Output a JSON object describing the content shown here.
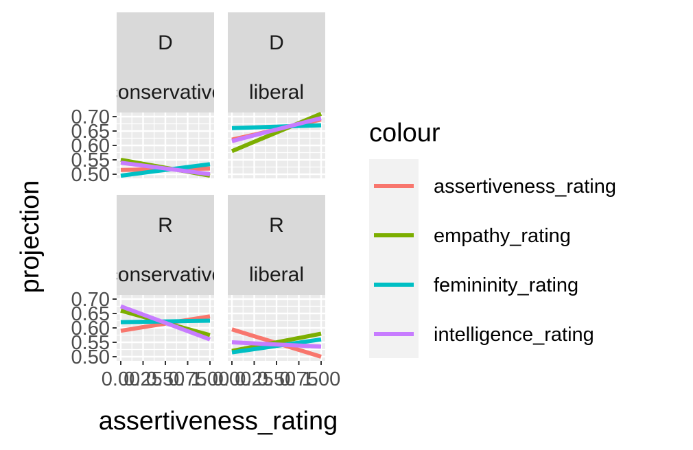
{
  "chart_data": {
    "type": "line",
    "facet_rows": [
      "D",
      "R"
    ],
    "facet_cols": [
      "conservative",
      "liberal"
    ],
    "xlabel": "assertiveness_rating",
    "ylabel": "projection",
    "xlim": [
      0,
      1
    ],
    "ylim": [
      0.5,
      0.7
    ],
    "x_ticks": [
      "0.00",
      "0.25",
      "0.50",
      "0.75",
      "1.00"
    ],
    "y_ticks": [
      "0.50",
      "0.55",
      "0.60",
      "0.65",
      "0.70"
    ],
    "grid": true,
    "legend": {
      "title": "colour",
      "placement": "right",
      "entries": [
        "assertiveness_rating",
        "empathy_rating",
        "femininity_rating",
        "intelligence_rating"
      ]
    },
    "colors": {
      "assertiveness_rating": "#F8766D",
      "empathy_rating": "#7CAE00",
      "femininity_rating": "#00BFC4",
      "intelligence_rating": "#C77CFF"
    },
    "panels": [
      {
        "row": "D",
        "col": "conservative",
        "series": [
          {
            "name": "assertiveness_rating",
            "x": [
              0,
              1
            ],
            "y": [
              0.515,
              0.52
            ]
          },
          {
            "name": "empathy_rating",
            "x": [
              0,
              1
            ],
            "y": [
              0.55,
              0.495
            ]
          },
          {
            "name": "femininity_rating",
            "x": [
              0,
              1
            ],
            "y": [
              0.495,
              0.535
            ]
          },
          {
            "name": "intelligence_rating",
            "x": [
              0,
              1
            ],
            "y": [
              0.54,
              0.5
            ]
          }
        ]
      },
      {
        "row": "D",
        "col": "liberal",
        "series": [
          {
            "name": "assertiveness_rating",
            "x": [
              0,
              1
            ],
            "y": [
              0.62,
              0.69
            ]
          },
          {
            "name": "empathy_rating",
            "x": [
              0,
              1
            ],
            "y": [
              0.58,
              0.71
            ]
          },
          {
            "name": "femininity_rating",
            "x": [
              0,
              1
            ],
            "y": [
              0.66,
              0.67
            ]
          },
          {
            "name": "intelligence_rating",
            "x": [
              0,
              1
            ],
            "y": [
              0.615,
              0.695
            ]
          }
        ]
      },
      {
        "row": "R",
        "col": "conservative",
        "series": [
          {
            "name": "assertiveness_rating",
            "x": [
              0,
              1
            ],
            "y": [
              0.59,
              0.64
            ]
          },
          {
            "name": "empathy_rating",
            "x": [
              0,
              1
            ],
            "y": [
              0.66,
              0.575
            ]
          },
          {
            "name": "femininity_rating",
            "x": [
              0,
              1
            ],
            "y": [
              0.62,
              0.625
            ]
          },
          {
            "name": "intelligence_rating",
            "x": [
              0,
              1
            ],
            "y": [
              0.675,
              0.56
            ]
          }
        ]
      },
      {
        "row": "R",
        "col": "liberal",
        "series": [
          {
            "name": "assertiveness_rating",
            "x": [
              0,
              1
            ],
            "y": [
              0.595,
              0.5
            ]
          },
          {
            "name": "empathy_rating",
            "x": [
              0,
              1
            ],
            "y": [
              0.52,
              0.58
            ]
          },
          {
            "name": "femininity_rating",
            "x": [
              0,
              1
            ],
            "y": [
              0.515,
              0.56
            ]
          },
          {
            "name": "intelligence_rating",
            "x": [
              0,
              1
            ],
            "y": [
              0.55,
              0.535
            ]
          }
        ]
      }
    ]
  }
}
